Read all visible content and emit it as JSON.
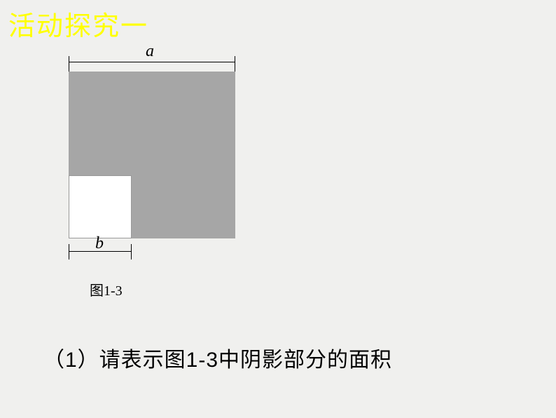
{
  "heading": "活动探究一",
  "diagram": {
    "big_square": {
      "size": 238,
      "fill_color": "#a6a6a6"
    },
    "small_square": {
      "size": 90,
      "fill_color": "#ffffff",
      "border_color": "#999999"
    },
    "dimension_a": {
      "label": "a",
      "font_style": "italic",
      "font_size": 24,
      "line_color": "#000000"
    },
    "dimension_b": {
      "label": "b",
      "font_style": "italic",
      "font_size": 24,
      "line_color": "#000000"
    },
    "background_color": "#f0f0ee"
  },
  "figure_caption": "图1-3",
  "question_text": "（1）请表示图1-3中阴影部分的面积",
  "colors": {
    "heading_color": "#ffff00",
    "text_color": "#000000",
    "page_bg": "#f0f0ee"
  },
  "typography": {
    "heading_fontsize": 38,
    "caption_fontsize": 20,
    "question_fontsize": 30
  }
}
